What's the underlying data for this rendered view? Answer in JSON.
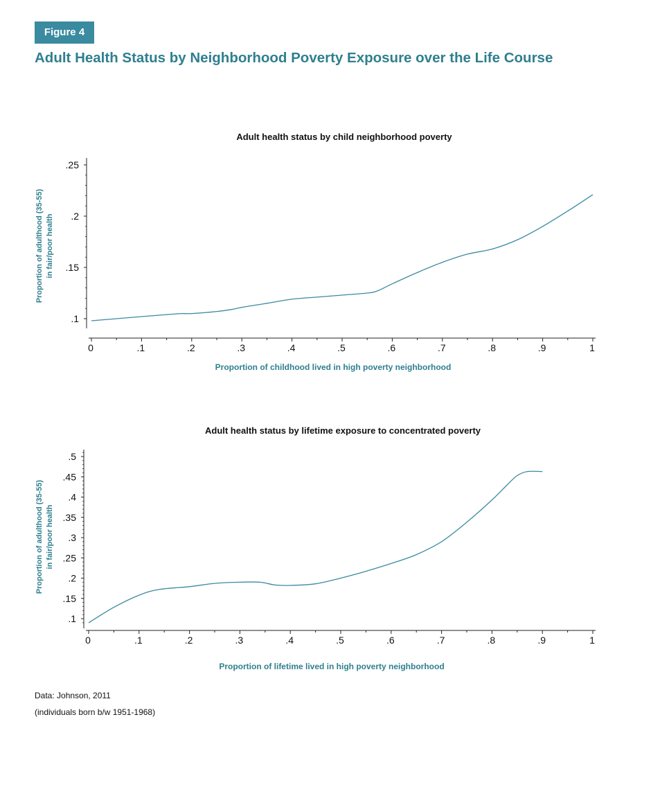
{
  "header": {
    "badge": "Figure 4",
    "title": "Adult Health Status by Neighborhood Poverty Exposure over the Life Course"
  },
  "colors": {
    "accent": "#2f7f8f",
    "badge_bg": "#3a8aa0",
    "line": "#3a8aa0"
  },
  "chart_data": [
    {
      "type": "line",
      "title": "Adult health status by child neighborhood poverty",
      "xlabel": "Proportion of childhood lived in high poverty neighborhood",
      "ylabel": "Proportion of adulthood (35-55) in fair/poor health",
      "xlim": [
        0,
        1
      ],
      "ylim": [
        0.1,
        0.25
      ],
      "x_ticks": [
        0,
        0.1,
        0.2,
        0.3,
        0.4,
        0.5,
        0.6,
        0.7,
        0.8,
        0.9,
        1
      ],
      "x_tick_labels": [
        "0",
        ".1",
        ".2",
        ".3",
        ".4",
        ".5",
        ".6",
        ".7",
        ".8",
        ".9",
        "1"
      ],
      "y_ticks": [
        0.1,
        0.15,
        0.2,
        0.25
      ],
      "y_tick_labels": [
        ".1",
        ".15",
        ".2",
        ".25"
      ],
      "grid": false,
      "series": [
        {
          "x": [
            0,
            0.05,
            0.1,
            0.15,
            0.18,
            0.2,
            0.25,
            0.28,
            0.3,
            0.35,
            0.4,
            0.45,
            0.5,
            0.55,
            0.57,
            0.6,
            0.65,
            0.7,
            0.75,
            0.8,
            0.85,
            0.9,
            0.95,
            1
          ],
          "y": [
            0.098,
            0.1,
            0.102,
            0.104,
            0.105,
            0.105,
            0.107,
            0.109,
            0.111,
            0.115,
            0.119,
            0.121,
            0.123,
            0.125,
            0.127,
            0.134,
            0.145,
            0.155,
            0.163,
            0.168,
            0.177,
            0.19,
            0.205,
            0.221
          ]
        }
      ]
    },
    {
      "type": "line",
      "title": "Adult health status by lifetime exposure to concentrated poverty",
      "xlabel": "Proportion of lifetime lived in high poverty neighborhood",
      "ylabel": "Proportion of adulthood (35-55) in fair/poor health",
      "xlim": [
        0,
        1
      ],
      "ylim": [
        0.1,
        0.5
      ],
      "x_ticks": [
        0,
        0.1,
        0.2,
        0.3,
        0.4,
        0.5,
        0.6,
        0.7,
        0.8,
        0.9,
        1
      ],
      "x_tick_labels": [
        "0",
        ".1",
        ".2",
        ".3",
        ".4",
        ".5",
        ".6",
        ".7",
        ".8",
        ".9",
        "1"
      ],
      "y_ticks": [
        0.1,
        0.15,
        0.2,
        0.25,
        0.3,
        0.35,
        0.4,
        0.45,
        0.5
      ],
      "y_tick_labels": [
        ".1",
        ".15",
        ".2",
        ".25",
        ".3",
        ".35",
        ".4",
        ".45",
        ".5"
      ],
      "grid": false,
      "series": [
        {
          "x": [
            0,
            0.05,
            0.1,
            0.14,
            0.2,
            0.25,
            0.3,
            0.34,
            0.37,
            0.4,
            0.45,
            0.5,
            0.55,
            0.6,
            0.65,
            0.7,
            0.75,
            0.8,
            0.83,
            0.85,
            0.87,
            0.9
          ],
          "y": [
            0.09,
            0.128,
            0.158,
            0.172,
            0.179,
            0.187,
            0.19,
            0.19,
            0.183,
            0.182,
            0.186,
            0.2,
            0.217,
            0.236,
            0.258,
            0.29,
            0.338,
            0.393,
            0.43,
            0.453,
            0.463,
            0.463
          ]
        }
      ]
    }
  ],
  "footer": {
    "source": "Data: Johnson, 2011",
    "note": "(individuals born b/w 1951-1968)"
  }
}
